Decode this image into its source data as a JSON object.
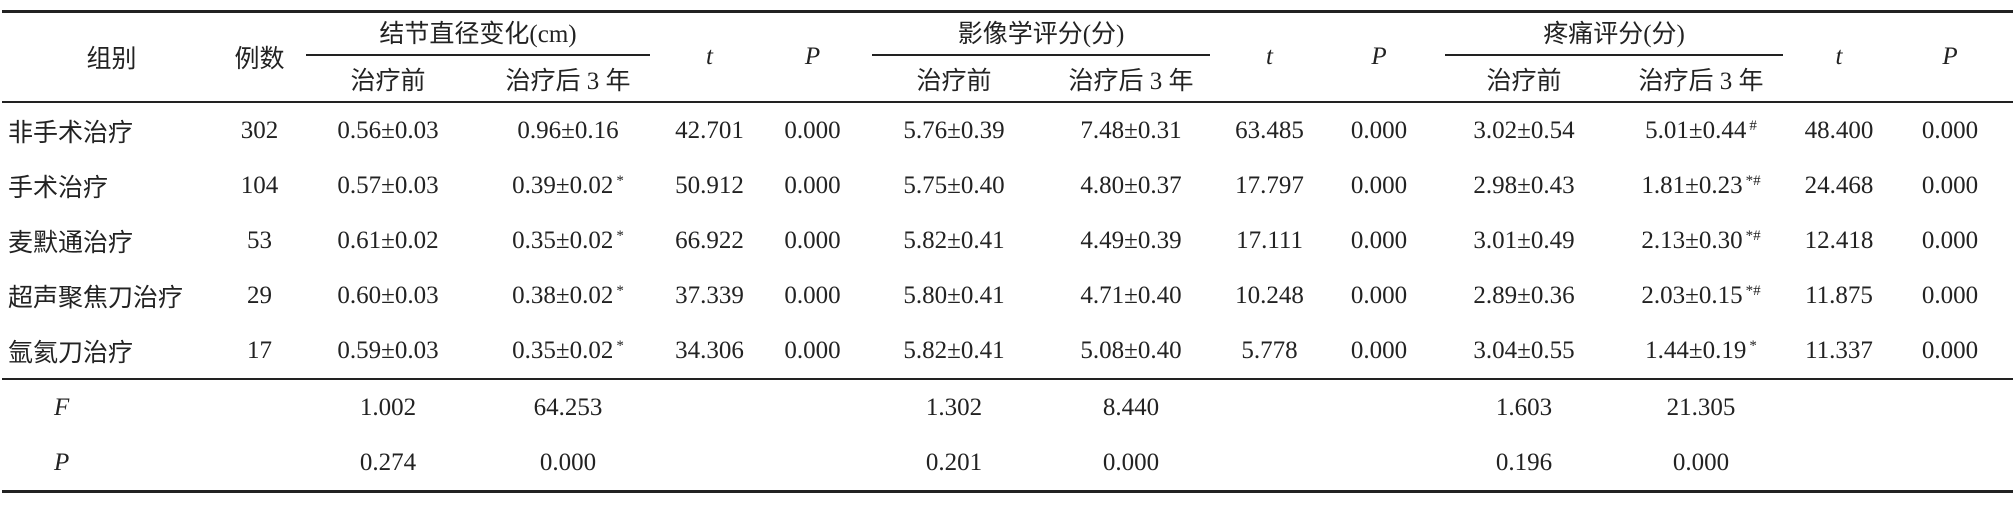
{
  "header": {
    "group": "组别",
    "n": "例数",
    "groups": [
      {
        "title": "结节直径变化(cm)",
        "sub": [
          "治疗前",
          "治疗后 3 年"
        ],
        "t": "t",
        "P": "P"
      },
      {
        "title": "影像学评分(分)",
        "sub": [
          "治疗前",
          "治疗后 3 年"
        ],
        "t": "t",
        "P": "P"
      },
      {
        "title": "疼痛评分(分)",
        "sub": [
          "治疗前",
          "治疗后 3 年"
        ],
        "t": "t",
        "P": "P"
      }
    ]
  },
  "rows": [
    {
      "group": "非手术治疗",
      "n": "302",
      "cells": [
        {
          "text": "0.56±0.03"
        },
        {
          "text": "0.96±0.16"
        },
        {
          "text": "42.701"
        },
        {
          "text": "0.000"
        },
        {
          "text": "5.76±0.39"
        },
        {
          "text": "7.48±0.31"
        },
        {
          "text": "63.485"
        },
        {
          "text": "0.000"
        },
        {
          "text": "3.02±0.54"
        },
        {
          "text": "5.01±0.44",
          "sup": "#"
        },
        {
          "text": "48.400"
        },
        {
          "text": "0.000"
        }
      ]
    },
    {
      "group": "手术治疗",
      "n": "104",
      "cells": [
        {
          "text": "0.57±0.03"
        },
        {
          "text": "0.39±0.02",
          "sup": "*"
        },
        {
          "text": "50.912"
        },
        {
          "text": "0.000"
        },
        {
          "text": "5.75±0.40"
        },
        {
          "text": "4.80±0.37"
        },
        {
          "text": "17.797"
        },
        {
          "text": "0.000"
        },
        {
          "text": "2.98±0.43"
        },
        {
          "text": "1.81±0.23",
          "sup": "*#"
        },
        {
          "text": "24.468"
        },
        {
          "text": "0.000"
        }
      ]
    },
    {
      "group": "麦默通治疗",
      "n": "53",
      "cells": [
        {
          "text": "0.61±0.02"
        },
        {
          "text": "0.35±0.02",
          "sup": "*"
        },
        {
          "text": "66.922"
        },
        {
          "text": "0.000"
        },
        {
          "text": "5.82±0.41"
        },
        {
          "text": "4.49±0.39"
        },
        {
          "text": "17.111"
        },
        {
          "text": "0.000"
        },
        {
          "text": "3.01±0.49"
        },
        {
          "text": "2.13±0.30",
          "sup": "*#"
        },
        {
          "text": "12.418"
        },
        {
          "text": "0.000"
        }
      ]
    },
    {
      "group": "超声聚焦刀治疗",
      "n": "29",
      "cells": [
        {
          "text": "0.60±0.03"
        },
        {
          "text": "0.38±0.02",
          "sup": "*"
        },
        {
          "text": "37.339"
        },
        {
          "text": "0.000"
        },
        {
          "text": "5.80±0.41"
        },
        {
          "text": "4.71±0.40"
        },
        {
          "text": "10.248"
        },
        {
          "text": "0.000"
        },
        {
          "text": "2.89±0.36"
        },
        {
          "text": "2.03±0.15",
          "sup": "*#"
        },
        {
          "text": "11.875"
        },
        {
          "text": "0.000"
        }
      ]
    },
    {
      "group": "氩氦刀治疗",
      "n": "17",
      "cells": [
        {
          "text": "0.59±0.03"
        },
        {
          "text": "0.35±0.02",
          "sup": "*"
        },
        {
          "text": "34.306"
        },
        {
          "text": "0.000"
        },
        {
          "text": "5.82±0.41"
        },
        {
          "text": "5.08±0.40"
        },
        {
          "text": "5.778"
        },
        {
          "text": "0.000"
        },
        {
          "text": "3.04±0.55"
        },
        {
          "text": "1.44±0.19",
          "sup": "*"
        },
        {
          "text": "11.337"
        },
        {
          "text": "0.000"
        }
      ]
    }
  ],
  "footer": [
    {
      "label": "F",
      "values": [
        "1.002",
        "64.253",
        "1.302",
        "8.440",
        "1.603",
        "21.305"
      ]
    },
    {
      "label": "P",
      "values": [
        "0.274",
        "0.000",
        "0.201",
        "0.000",
        "0.196",
        "0.000"
      ]
    }
  ]
}
